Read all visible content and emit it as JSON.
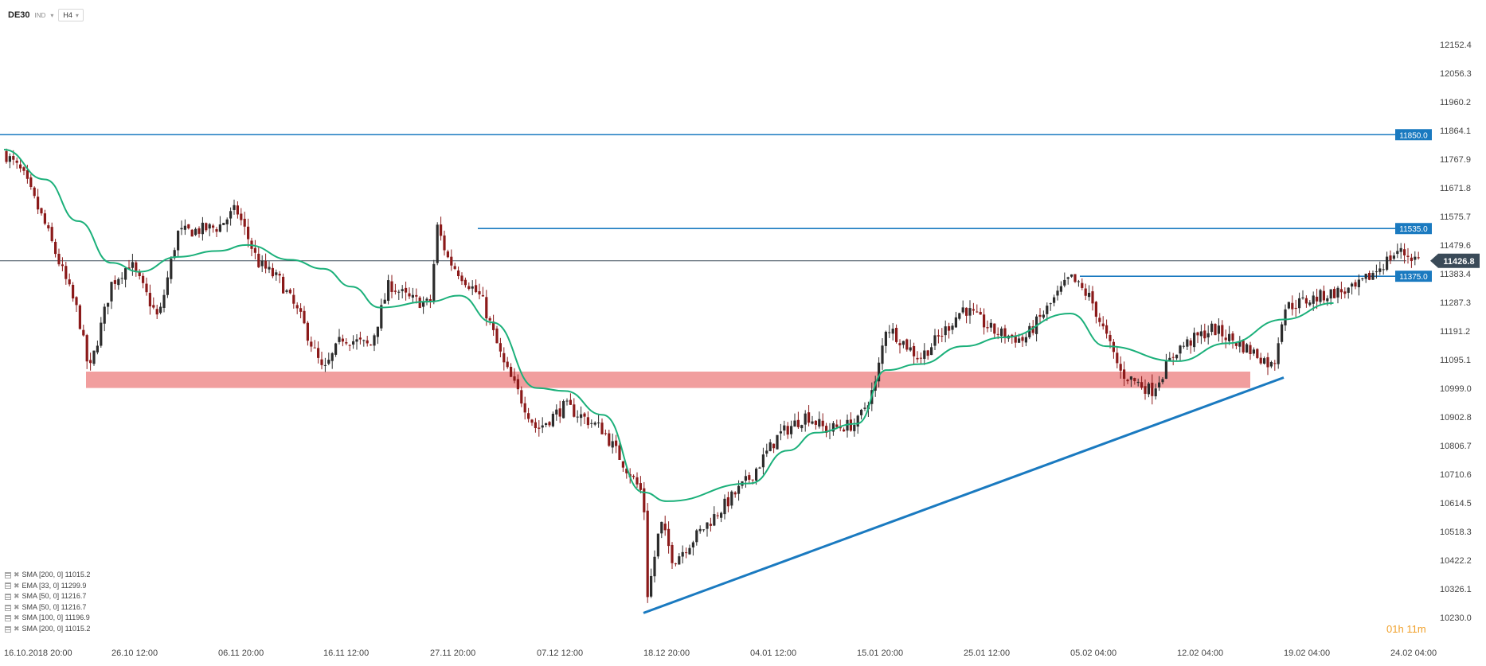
{
  "header": {
    "symbol": "DE30",
    "tag": "IND",
    "timeframe": "H4"
  },
  "timer": {
    "hours": "01",
    "h_unit": "h",
    "minutes": "11",
    "m_unit": "m"
  },
  "indicators": [
    "SMA [200,  0] 11015.2",
    "EMA [33,  0] 11299.9",
    "SMA [50,  0] 11216.7",
    "SMA [50,  0] 11216.7",
    "SMA [100,  0] 11196.9",
    "SMA [200,  0] 11015.2"
  ],
  "colors": {
    "bull": "#2c2c2c",
    "bear": "#8b1a1a",
    "ema": "#1bb07a",
    "level": "#1a7ac0",
    "zone": "#ee8d8d",
    "current": "#3a4a58"
  },
  "chart_data": {
    "type": "candlestick",
    "ylim": [
      10230.0,
      12152.4
    ],
    "y_ticks": [
      "12152.4",
      "12056.3",
      "11960.2",
      "11864.1",
      "11767.9",
      "11671.8",
      "11575.7",
      "11479.6",
      "11383.4",
      "11287.3",
      "11191.2",
      "11095.1",
      "10999.0",
      "10902.8",
      "10806.7",
      "10710.6",
      "10614.5",
      "10518.3",
      "10422.2",
      "10326.1",
      "10230.0"
    ],
    "x_ticks": [
      "16.10.2018  20:00",
      "26.10  12:00",
      "06.11  20:00",
      "16.11  12:00",
      "27.11  20:00",
      "07.12  12:00",
      "18.12  20:00",
      "04.01  12:00",
      "15.01  20:00",
      "25.01  12:00",
      "05.02  04:00",
      "12.02  04:00",
      "19.02  04:00",
      "24.02  04:00"
    ],
    "current_price": "11426.8",
    "levels": [
      {
        "value": 11850.0,
        "label": "11850.0"
      },
      {
        "value": 11535.0,
        "label": "11535.0"
      },
      {
        "value": 11375.0,
        "label": "11375.0"
      }
    ],
    "support_zone": [
      11000,
      11055
    ],
    "trendline": [
      {
        "date": "18.12 20:00",
        "price": 10245
      },
      {
        "date": "19.02 04:00",
        "price": 11035
      }
    ],
    "ema_path": [
      [
        "16.10 20:00",
        11800
      ],
      [
        "20.10",
        11700
      ],
      [
        "23.10",
        11560
      ],
      [
        "26.10 12:00",
        11420
      ],
      [
        "29.10",
        11390
      ],
      [
        "02.11",
        11440
      ],
      [
        "06.11 20:00",
        11460
      ],
      [
        "09.11",
        11480
      ],
      [
        "13.11",
        11430
      ],
      [
        "16.11 12:00",
        11400
      ],
      [
        "19.11",
        11340
      ],
      [
        "22.11",
        11270
      ],
      [
        "27.11 20:00",
        11290
      ],
      [
        "30.11",
        11310
      ],
      [
        "03.12",
        11220
      ],
      [
        "07.12 12:00",
        11000
      ],
      [
        "10.12",
        10990
      ],
      [
        "14.12",
        10910
      ],
      [
        "18.12 20:00",
        10650
      ],
      [
        "22.12",
        10620
      ],
      [
        "04.01 12:00",
        10680
      ],
      [
        "08.01",
        10790
      ],
      [
        "11.01",
        10850
      ],
      [
        "15.01 20:00",
        10880
      ],
      [
        "18.01",
        11060
      ],
      [
        "21.01",
        11080
      ],
      [
        "25.01 12:00",
        11140
      ],
      [
        "29.01",
        11170
      ],
      [
        "05.02 04:00",
        11250
      ],
      [
        "07.02",
        11140
      ],
      [
        "12.02 04:00",
        11090
      ],
      [
        "15.02",
        11150
      ],
      [
        "19.02 04:00",
        11230
      ],
      [
        "21.02",
        11285
      ]
    ],
    "ohlc_waypoints": [
      [
        "16.10 20:00",
        11790
      ],
      [
        "18.10",
        11720
      ],
      [
        "20.10",
        11550
      ],
      [
        "23.10",
        11250
      ],
      [
        "24.10",
        11050
      ],
      [
        "26.10 12:00",
        11350
      ],
      [
        "28.10",
        11420
      ],
      [
        "31.10",
        11230
      ],
      [
        "02.11",
        11520
      ],
      [
        "06.11 20:00",
        11540
      ],
      [
        "08.11",
        11600
      ],
      [
        "10.11",
        11420
      ],
      [
        "12.11",
        11360
      ],
      [
        "14.11",
        11230
      ],
      [
        "16.11 12:00",
        11050
      ],
      [
        "18.11",
        11170
      ],
      [
        "21.11",
        11140
      ],
      [
        "23.11",
        11350
      ],
      [
        "25.11",
        11300
      ],
      [
        "27.11 20:00",
        11280
      ],
      [
        "28.11",
        11540
      ],
      [
        "29.11",
        11430
      ],
      [
        "02.12",
        11300
      ],
      [
        "04.12",
        11080
      ],
      [
        "07.12 12:00",
        10860
      ],
      [
        "10.12",
        10940
      ],
      [
        "12.12",
        10900
      ],
      [
        "14.12",
        10860
      ],
      [
        "18.12 20:00",
        10640
      ],
      [
        "19.12",
        10300
      ],
      [
        "21.12",
        10550
      ],
      [
        "23.12",
        10420
      ],
      [
        "04.01 12:00",
        10700
      ],
      [
        "07.01",
        10840
      ],
      [
        "10.01",
        10910
      ],
      [
        "12.01",
        10860
      ],
      [
        "15.01 20:00",
        10880
      ],
      [
        "17.01",
        11010
      ],
      [
        "18.01",
        11210
      ],
      [
        "21.01",
        11100
      ],
      [
        "23.01",
        11180
      ],
      [
        "25.01 12:00",
        11270
      ],
      [
        "28.01",
        11190
      ],
      [
        "31.01",
        11160
      ],
      [
        "05.02 04:00",
        11370
      ],
      [
        "06.02",
        11300
      ],
      [
        "08.02",
        11050
      ],
      [
        "10.02",
        10990
      ],
      [
        "12.02 04:00",
        11130
      ],
      [
        "14.02",
        11200
      ],
      [
        "17.02",
        11110
      ],
      [
        "18.02",
        11070
      ],
      [
        "19.02 04:00",
        11270
      ],
      [
        "21.02",
        11320
      ],
      [
        "22.02",
        11330
      ],
      [
        "24.02",
        11460
      ],
      [
        "25.02",
        11430
      ]
    ]
  }
}
